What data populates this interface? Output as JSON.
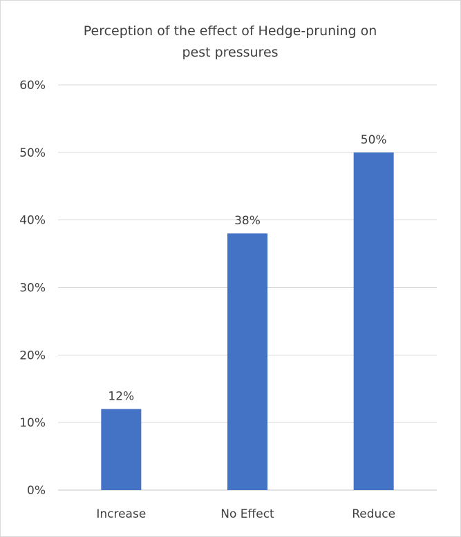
{
  "chart_data": {
    "type": "bar",
    "title_lines": [
      "Perception of the effect of Hedge-pruning on",
      "pest pressures"
    ],
    "categories": [
      "Increase",
      "No Effect",
      "Reduce"
    ],
    "values": [
      12,
      38,
      50
    ],
    "data_labels": [
      "12%",
      "38%",
      "50%"
    ],
    "y_ticks": [
      "0%",
      "10%",
      "20%",
      "30%",
      "40%",
      "50%",
      "60%"
    ],
    "ylim": [
      0,
      60
    ],
    "grid": true,
    "legend": "none",
    "bar_color": "#4472c4",
    "grid_color": "#d9d9d9"
  }
}
